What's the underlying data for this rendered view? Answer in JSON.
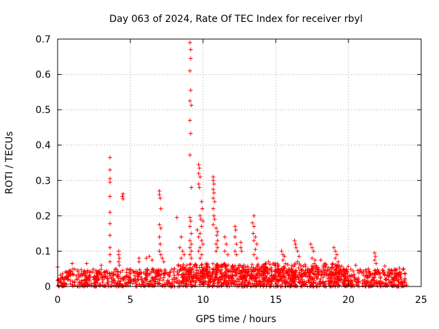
{
  "chart_data": {
    "type": "scatter",
    "title": "Day 063 of 2024, Rate Of TEC Index for receiver rbyl",
    "xlabel": "GPS time / hours",
    "ylabel": "ROTI / TECUs",
    "xlim": [
      0,
      25
    ],
    "ylim": [
      0,
      0.7
    ],
    "xticks": [
      0,
      5,
      10,
      15,
      20,
      25
    ],
    "xtick_labels": [
      "0",
      "5",
      "10",
      "15",
      "20",
      "25"
    ],
    "yticks": [
      0,
      0.1,
      0.2,
      0.3,
      0.4,
      0.5,
      0.6,
      0.7
    ],
    "ytick_labels": [
      "0",
      "0.1",
      "0.2",
      "0.3",
      "0.4",
      "0.5",
      "0.6",
      "0.7"
    ],
    "grid": true,
    "marker": "+",
    "series": [
      {
        "name": "ROTI",
        "color": "#ff0000",
        "baseline_band": {
          "x_range": [
            0,
            24
          ],
          "y_range": [
            0,
            0.05
          ]
        },
        "points": [
          [
            3.6,
            0.365
          ],
          [
            3.6,
            0.33
          ],
          [
            3.6,
            0.305
          ],
          [
            3.6,
            0.295
          ],
          [
            3.6,
            0.255
          ],
          [
            3.6,
            0.21
          ],
          [
            3.6,
            0.178
          ],
          [
            3.6,
            0.145
          ],
          [
            3.6,
            0.11
          ],
          [
            3.6,
            0.09
          ],
          [
            3.6,
            0.07
          ],
          [
            4.2,
            0.1
          ],
          [
            4.2,
            0.09
          ],
          [
            4.25,
            0.08
          ],
          [
            4.2,
            0.07
          ],
          [
            4.25,
            0.06
          ],
          [
            4.5,
            0.262
          ],
          [
            4.45,
            0.255
          ],
          [
            4.5,
            0.248
          ],
          [
            1.0,
            0.065
          ],
          [
            2.0,
            0.065
          ],
          [
            3.0,
            0.06
          ],
          [
            5.6,
            0.08
          ],
          [
            5.6,
            0.07
          ],
          [
            6.1,
            0.08
          ],
          [
            6.3,
            0.085
          ],
          [
            6.5,
            0.075
          ],
          [
            7.0,
            0.27
          ],
          [
            7.0,
            0.26
          ],
          [
            7.05,
            0.25
          ],
          [
            7.1,
            0.22
          ],
          [
            7.0,
            0.175
          ],
          [
            7.1,
            0.165
          ],
          [
            7.0,
            0.14
          ],
          [
            7.05,
            0.12
          ],
          [
            7.0,
            0.1
          ],
          [
            7.1,
            0.09
          ],
          [
            7.2,
            0.08
          ],
          [
            7.3,
            0.07
          ],
          [
            8.2,
            0.195
          ],
          [
            8.5,
            0.14
          ],
          [
            8.4,
            0.11
          ],
          [
            8.6,
            0.1
          ],
          [
            8.7,
            0.09
          ],
          [
            8.5,
            0.08
          ],
          [
            9.1,
            0.69
          ],
          [
            9.15,
            0.67
          ],
          [
            9.15,
            0.645
          ],
          [
            9.1,
            0.61
          ],
          [
            9.15,
            0.555
          ],
          [
            9.1,
            0.525
          ],
          [
            9.2,
            0.513
          ],
          [
            9.1,
            0.47
          ],
          [
            9.15,
            0.433
          ],
          [
            9.1,
            0.372
          ],
          [
            9.2,
            0.28
          ],
          [
            9.1,
            0.195
          ],
          [
            9.15,
            0.185
          ],
          [
            9.1,
            0.17
          ],
          [
            9.2,
            0.15
          ],
          [
            9.1,
            0.13
          ],
          [
            9.2,
            0.12
          ],
          [
            9.1,
            0.11
          ],
          [
            9.2,
            0.1
          ],
          [
            9.1,
            0.09
          ],
          [
            9.2,
            0.08
          ],
          [
            9.7,
            0.345
          ],
          [
            9.75,
            0.335
          ],
          [
            9.7,
            0.32
          ],
          [
            9.8,
            0.31
          ],
          [
            9.7,
            0.29
          ],
          [
            9.75,
            0.28
          ],
          [
            9.9,
            0.24
          ],
          [
            9.95,
            0.22
          ],
          [
            9.8,
            0.2
          ],
          [
            9.85,
            0.19
          ],
          [
            10.0,
            0.185
          ],
          [
            9.9,
            0.17
          ],
          [
            9.6,
            0.16
          ],
          [
            9.8,
            0.15
          ],
          [
            9.7,
            0.14
          ],
          [
            9.9,
            0.13
          ],
          [
            10.0,
            0.12
          ],
          [
            9.8,
            0.11
          ],
          [
            9.7,
            0.1
          ],
          [
            9.9,
            0.09
          ],
          [
            9.8,
            0.08
          ],
          [
            10.7,
            0.31
          ],
          [
            10.7,
            0.3
          ],
          [
            10.75,
            0.29
          ],
          [
            10.7,
            0.275
          ],
          [
            10.75,
            0.265
          ],
          [
            10.7,
            0.25
          ],
          [
            10.8,
            0.24
          ],
          [
            10.7,
            0.22
          ],
          [
            10.75,
            0.2
          ],
          [
            10.8,
            0.19
          ],
          [
            10.7,
            0.175
          ],
          [
            10.9,
            0.165
          ],
          [
            11.0,
            0.155
          ],
          [
            10.95,
            0.145
          ],
          [
            11.0,
            0.13
          ],
          [
            10.9,
            0.12
          ],
          [
            11.0,
            0.11
          ],
          [
            10.9,
            0.1
          ],
          [
            11.5,
            0.14
          ],
          [
            11.6,
            0.12
          ],
          [
            11.5,
            0.1
          ],
          [
            11.7,
            0.09
          ],
          [
            12.2,
            0.17
          ],
          [
            12.25,
            0.16
          ],
          [
            12.2,
            0.14
          ],
          [
            12.3,
            0.12
          ],
          [
            12.2,
            0.1
          ],
          [
            12.3,
            0.09
          ],
          [
            12.6,
            0.125
          ],
          [
            12.6,
            0.11
          ],
          [
            12.65,
            0.1
          ],
          [
            13.5,
            0.2
          ],
          [
            13.4,
            0.18
          ],
          [
            13.5,
            0.17
          ],
          [
            13.45,
            0.15
          ],
          [
            13.6,
            0.14
          ],
          [
            13.5,
            0.13
          ],
          [
            13.7,
            0.12
          ],
          [
            13.6,
            0.105
          ],
          [
            13.5,
            0.09
          ],
          [
            13.7,
            0.08
          ],
          [
            14.5,
            0.07
          ],
          [
            15.0,
            0.065
          ],
          [
            15.4,
            0.1
          ],
          [
            15.5,
            0.09
          ],
          [
            15.6,
            0.085
          ],
          [
            15.5,
            0.075
          ],
          [
            16.3,
            0.13
          ],
          [
            16.35,
            0.12
          ],
          [
            16.4,
            0.11
          ],
          [
            16.5,
            0.1
          ],
          [
            16.6,
            0.085
          ],
          [
            16.5,
            0.07
          ],
          [
            17.4,
            0.12
          ],
          [
            17.5,
            0.11
          ],
          [
            17.6,
            0.1
          ],
          [
            17.5,
            0.08
          ],
          [
            17.7,
            0.075
          ],
          [
            18.1,
            0.075
          ],
          [
            19.0,
            0.11
          ],
          [
            19.1,
            0.1
          ],
          [
            19.2,
            0.09
          ],
          [
            19.1,
            0.08
          ],
          [
            19.3,
            0.07
          ],
          [
            21.8,
            0.095
          ],
          [
            21.85,
            0.085
          ],
          [
            21.8,
            0.075
          ],
          [
            21.9,
            0.065
          ],
          [
            0.0,
            0.055
          ],
          [
            23.8,
            0.05
          ],
          [
            23.5,
            0.052
          ],
          [
            22.5,
            0.058
          ],
          [
            20.5,
            0.06
          ]
        ]
      }
    ]
  }
}
